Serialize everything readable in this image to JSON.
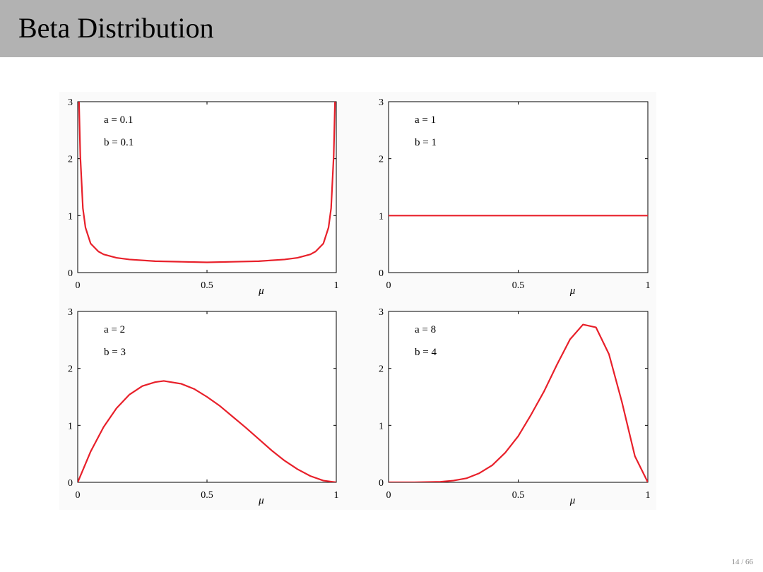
{
  "slide": {
    "title": "Beta Distribution",
    "page": "14 / 66"
  },
  "colors": {
    "title_bar": "#b2b2b2",
    "curve": "#e8202a",
    "axes": "#000000"
  },
  "chart_data": [
    {
      "type": "line",
      "a_label": "a = 0.1",
      "b_label": "b = 0.1",
      "params": {
        "a": 0.1,
        "b": 0.1
      },
      "xlabel": "μ",
      "xlim": [
        0,
        1
      ],
      "ylim": [
        0,
        3
      ],
      "xticks": [
        "0",
        "0.5",
        "1"
      ],
      "yticks": [
        "0",
        "1",
        "2",
        "3"
      ],
      "series": [
        {
          "x": [
            0.005,
            0.01,
            0.02,
            0.03,
            0.05,
            0.08,
            0.1,
            0.15,
            0.2,
            0.3,
            0.4,
            0.5,
            0.6,
            0.7,
            0.8,
            0.85,
            0.9,
            0.92,
            0.95,
            0.97,
            0.98,
            0.99,
            0.995
          ],
          "y": [
            3.0,
            2.05,
            1.13,
            0.79,
            0.51,
            0.37,
            0.32,
            0.26,
            0.23,
            0.2,
            0.19,
            0.18,
            0.19,
            0.2,
            0.23,
            0.26,
            0.32,
            0.37,
            0.51,
            0.79,
            1.13,
            2.05,
            3.0
          ]
        }
      ]
    },
    {
      "type": "line",
      "a_label": "a = 1",
      "b_label": "b = 1",
      "params": {
        "a": 1,
        "b": 1
      },
      "xlabel": "μ",
      "xlim": [
        0,
        1
      ],
      "ylim": [
        0,
        3
      ],
      "xticks": [
        "0",
        "0.5",
        "1"
      ],
      "yticks": [
        "0",
        "1",
        "2",
        "3"
      ],
      "series": [
        {
          "x": [
            0,
            0.25,
            0.5,
            0.75,
            1
          ],
          "y": [
            1,
            1,
            1,
            1,
            1
          ]
        }
      ]
    },
    {
      "type": "line",
      "a_label": "a = 2",
      "b_label": "b = 3",
      "params": {
        "a": 2,
        "b": 3
      },
      "xlabel": "μ",
      "xlim": [
        0,
        1
      ],
      "ylim": [
        0,
        3
      ],
      "xticks": [
        "0",
        "0.5",
        "1"
      ],
      "yticks": [
        "0",
        "1",
        "2",
        "3"
      ],
      "series": [
        {
          "x": [
            0,
            0.05,
            0.1,
            0.15,
            0.2,
            0.25,
            0.3,
            0.333,
            0.4,
            0.45,
            0.5,
            0.55,
            0.6,
            0.65,
            0.7,
            0.75,
            0.8,
            0.85,
            0.9,
            0.95,
            1
          ],
          "y": [
            0,
            0.54,
            0.97,
            1.3,
            1.54,
            1.69,
            1.76,
            1.78,
            1.73,
            1.64,
            1.5,
            1.34,
            1.15,
            0.96,
            0.76,
            0.56,
            0.38,
            0.23,
            0.11,
            0.03,
            0
          ]
        }
      ]
    },
    {
      "type": "line",
      "a_label": "a = 8",
      "b_label": "b = 4",
      "params": {
        "a": 8,
        "b": 4
      },
      "xlabel": "μ",
      "xlim": [
        0,
        1
      ],
      "ylim": [
        0,
        3
      ],
      "xticks": [
        "0",
        "0.5",
        "1"
      ],
      "yticks": [
        "0",
        "1",
        "2",
        "3"
      ],
      "series": [
        {
          "x": [
            0,
            0.1,
            0.2,
            0.25,
            0.3,
            0.35,
            0.4,
            0.45,
            0.5,
            0.55,
            0.6,
            0.65,
            0.7,
            0.75,
            0.8,
            0.85,
            0.9,
            0.95,
            1
          ],
          "y": [
            0,
            0,
            0.01,
            0.03,
            0.07,
            0.16,
            0.3,
            0.52,
            0.81,
            1.19,
            1.6,
            2.07,
            2.51,
            2.77,
            2.72,
            2.25,
            1.41,
            0.46,
            0
          ]
        }
      ]
    }
  ]
}
